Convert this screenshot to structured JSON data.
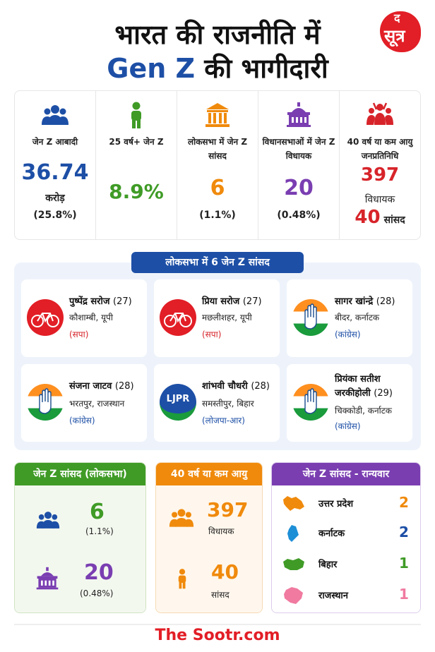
{
  "header": {
    "title_line1": "भारत की राजनीति में",
    "title_genz": "Gen Z",
    "title_line2_rest": " की भागीदारी",
    "logo_top": "द",
    "logo_word": "सूत्र"
  },
  "colors": {
    "blue": "#1d4fa6",
    "green": "#3f9b26",
    "orange": "#f08a0c",
    "purple": "#7a3eb1",
    "red": "#d7242a"
  },
  "stats": [
    {
      "icon": "group-icon",
      "label": "जेन Z आबादी",
      "value": "36.74",
      "sub1": "करोड़",
      "sub2": "(25.8%)"
    },
    {
      "icon": "person-icon",
      "label": "25 वर्ष+ जेन Z",
      "value": "8.9%"
    },
    {
      "icon": "parliament-icon",
      "label": "लोकसभा में जेन Z सांसद",
      "value": "6",
      "sub1": "(1.1%)"
    },
    {
      "icon": "assembly-icon",
      "label": "विधानसभाओं में जेन Z विधायक",
      "value": "20",
      "sub1": "(0.48%)"
    },
    {
      "icon": "leaders-icon",
      "label": "40 वर्ष या कम आयु जनप्रतिनिधि",
      "value": "397",
      "sub1": "विधायक",
      "value2": "40",
      "sub2": "सांसद"
    }
  ],
  "mp_section": {
    "title": "लोकसभा में 6 जेन Z सांसद",
    "mps": [
      {
        "name": "पुष्पेंद्र सरोज",
        "age": "(27)",
        "place": "कौशाम्बी, यूपी",
        "party": "(सपा)",
        "emblem": "cycle-icon"
      },
      {
        "name": "प्रिया सरोज",
        "age": "(27)",
        "place": "मछलीशहर, यूपी",
        "party": "(सपा)",
        "emblem": "cycle-icon"
      },
      {
        "name": "सागर खांन्द्रे",
        "age": "(28)",
        "place": "बीदर, कर्नाटक",
        "party": "(कांग्रेस)",
        "emblem": "hand-icon"
      },
      {
        "name": "संजना जाटव",
        "age": "(28)",
        "place": "भरतपुर, राजस्थान",
        "party": "(कांग्रेस)",
        "emblem": "hand-icon"
      },
      {
        "name": "शांभवी चौधरी",
        "age": "(28)",
        "place": "समस्तीपुर, बिहार",
        "party": "(लोजपा-आर)",
        "emblem": "ljpr-logo",
        "logo_text": "LJPR"
      },
      {
        "name": "प्रियंका सतीश जरकीहोली",
        "age": "(29)",
        "place": "चिक्कोडी, कर्नाटक",
        "party": "(कांग्रेस)",
        "emblem": "hand-icon"
      }
    ]
  },
  "panels": {
    "genz_mps": {
      "title": "जेन Z सांसद (लोकसभा)",
      "val1": "6",
      "sub1": "(1.1%)",
      "val2": "20",
      "sub2": "(0.48%)"
    },
    "under40": {
      "title": "40 वर्ष या कम आयु",
      "val1": "397",
      "sub1": "विधायक",
      "val2": "40",
      "sub2": "सांसद"
    },
    "statewise": {
      "title": "जेन Z सांसद - रान्यवार",
      "states": [
        {
          "name": "उत्तर प्रदेश",
          "value": "2",
          "color": "#f08a0c"
        },
        {
          "name": "कर्नाटक",
          "value": "2",
          "color": "#1d8fd6"
        },
        {
          "name": "बिहार",
          "value": "1",
          "color": "#3f9b26"
        },
        {
          "name": "राजस्थान",
          "value": "1",
          "color": "#f07aa0"
        }
      ]
    }
  },
  "footer": {
    "site": "The Sootr.com"
  }
}
